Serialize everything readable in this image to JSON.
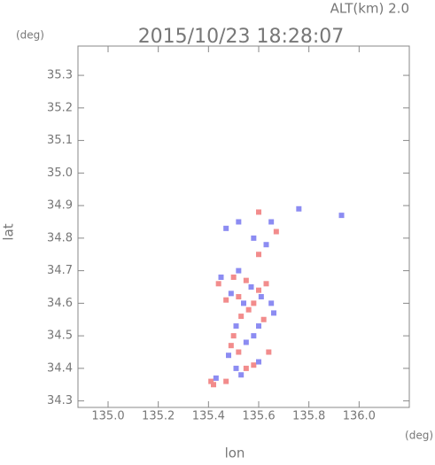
{
  "chart_data": {
    "type": "scatter",
    "title": "2015/10/23 18:28:07",
    "subtitle": "ALT(km) 2.0",
    "y_unit": "(deg)",
    "x_unit": "(deg)",
    "xlabel": "lon",
    "ylabel": "lat",
    "xlim": [
      134.88,
      136.2
    ],
    "ylim": [
      34.28,
      35.39
    ],
    "xticks": [
      {
        "value": 135.0,
        "label": "135.0"
      },
      135.2,
      135.4,
      135.6,
      135.8,
      {
        "value": 136.0,
        "label": "136.0"
      }
    ],
    "yticks": [
      34.3,
      34.4,
      34.5,
      34.6,
      34.7,
      34.8,
      34.9,
      {
        "value": 35.0,
        "label": "35.0"
      },
      35.1,
      35.2,
      35.3
    ],
    "series": [
      {
        "color": "#f28c8c",
        "x": [
          135.42,
          135.41,
          135.47,
          135.55,
          135.58,
          135.52,
          135.5,
          135.49,
          135.53,
          135.56,
          135.52,
          135.47,
          135.6,
          135.63,
          135.55,
          135.5,
          135.58,
          135.62,
          135.6,
          135.67,
          135.6,
          135.44,
          135.64
        ],
        "y": [
          34.35,
          34.36,
          34.36,
          34.4,
          34.41,
          34.45,
          34.5,
          34.47,
          34.56,
          34.58,
          34.62,
          34.61,
          34.64,
          34.66,
          34.67,
          34.68,
          34.6,
          34.55,
          34.88,
          34.82,
          34.75,
          34.66,
          34.45
        ]
      },
      {
        "color": "#8c8cf2",
        "x": [
          135.43,
          135.51,
          135.6,
          135.48,
          135.55,
          135.58,
          135.51,
          135.54,
          135.49,
          135.57,
          135.61,
          135.65,
          135.45,
          135.52,
          135.47,
          135.52,
          135.58,
          135.65,
          135.63,
          135.76,
          135.93,
          135.6,
          135.66,
          135.53
        ],
        "y": [
          34.37,
          34.4,
          34.42,
          34.44,
          34.48,
          34.5,
          34.53,
          34.6,
          34.63,
          34.65,
          34.62,
          34.6,
          34.68,
          34.7,
          34.83,
          34.85,
          34.8,
          34.85,
          34.78,
          34.89,
          34.87,
          34.53,
          34.57,
          34.38
        ]
      }
    ]
  }
}
